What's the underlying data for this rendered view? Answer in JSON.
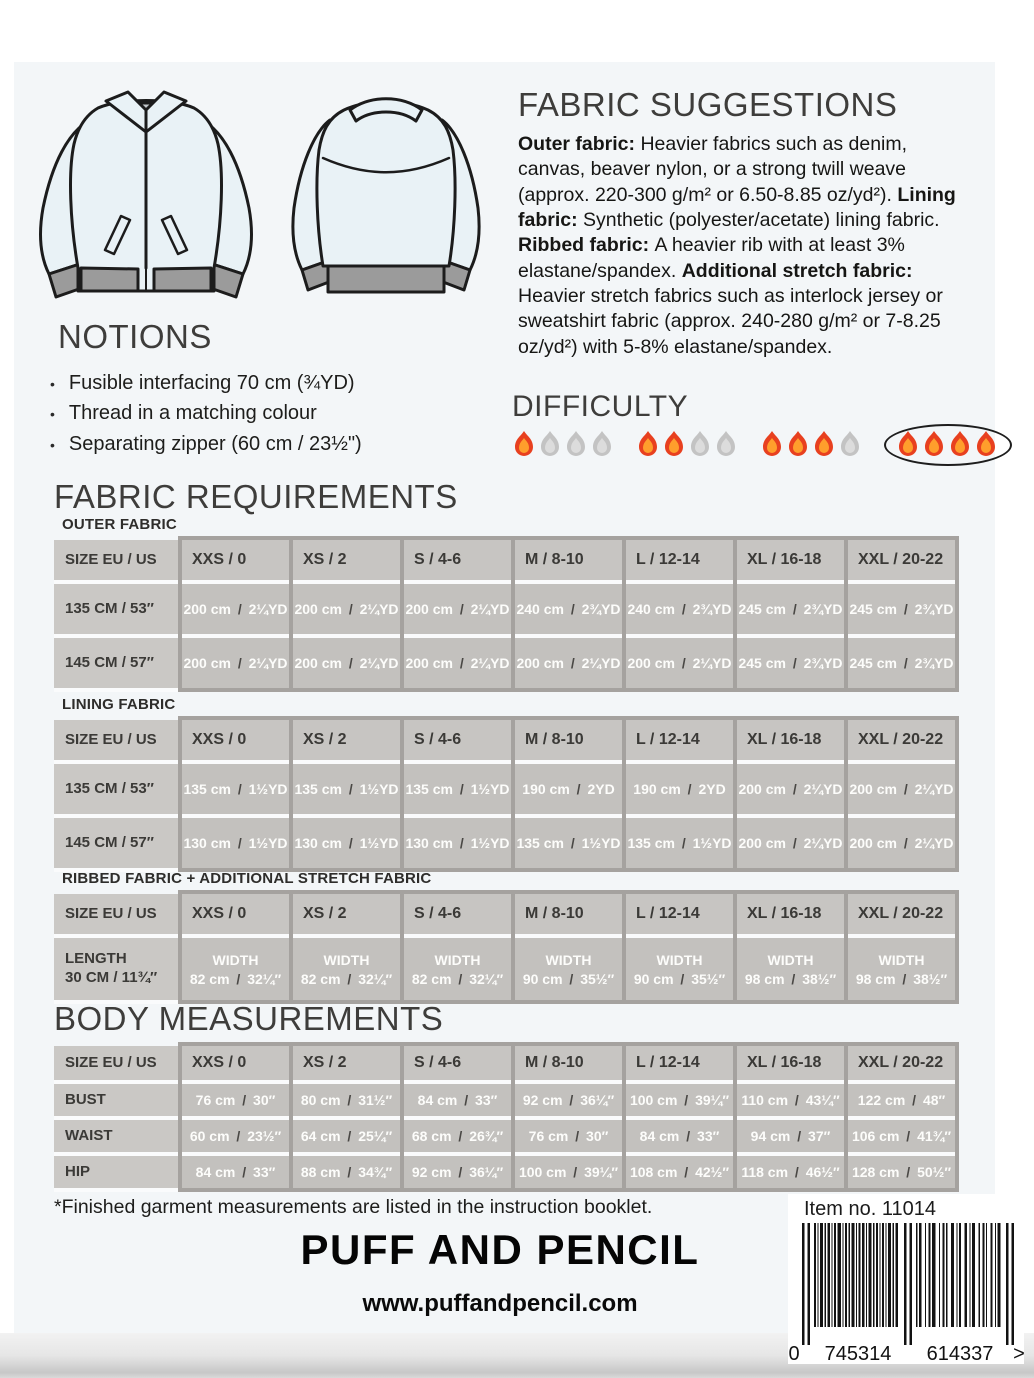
{
  "fabric_suggestions": {
    "title": "FABRIC SUGGESTIONS",
    "segments": [
      {
        "bold": true,
        "text": "Outer fabric: "
      },
      {
        "bold": false,
        "text": "Heavier fabrics such as denim, canvas, beaver nylon, or a strong twill weave (approx. 220-300 g/m² or 6.50-8.85 oz/yd²). "
      },
      {
        "bold": true,
        "text": "Lining fabric: "
      },
      {
        "bold": false,
        "text": "Synthetic (polyester/acetate) lining fabric. "
      },
      {
        "bold": true,
        "text": "Ribbed fabric: "
      },
      {
        "bold": false,
        "text": "A heavier rib with at least 3% elastane/spandex. "
      },
      {
        "bold": true,
        "text": "Additional stretch fabric: "
      },
      {
        "bold": false,
        "text": "Heavier stretch fabrics such as interlock jersey or sweatshirt fabric (approx. 240-280 g/m² or 7-8.25 oz/yd²) with 5-8% elastane/spandex."
      }
    ]
  },
  "notions": {
    "title": "NOTIONS",
    "items": [
      "Fusible interfacing 70 cm (¾YD)",
      "Thread in a matching colour",
      "Separating zipper (60 cm / 23½\")"
    ]
  },
  "difficulty": {
    "title": "DIFFICULTY",
    "levels": [
      {
        "filled": 1,
        "total": 4,
        "selected": false
      },
      {
        "filled": 2,
        "total": 4,
        "selected": false
      },
      {
        "filled": 3,
        "total": 4,
        "selected": false
      },
      {
        "filled": 4,
        "total": 4,
        "selected": true
      }
    ],
    "flame_filled_colors": [
      "#e8401f",
      "#ff9e2c"
    ],
    "flame_empty_colors": [
      "#c3c3c3",
      "#dcdcdc"
    ]
  },
  "size_columns": {
    "header": "SIZE EU / US",
    "sizes": [
      "XXS / 0",
      "XS / 2",
      "S / 4-6",
      "M / 8-10",
      "L / 12-14",
      "XL / 16-18",
      "XXL / 20-22"
    ],
    "separator": " / "
  },
  "fabric_requirements": {
    "title": "FABRIC REQUIREMENTS",
    "tables": [
      {
        "name": "OUTER FABRIC",
        "rows": [
          {
            "label_lines": [
              "135 CM / 53″"
            ],
            "cells": [
              [
                "200 cm",
                "2¼YD"
              ],
              [
                "200 cm",
                "2¼YD"
              ],
              [
                "200 cm",
                "2¼YD"
              ],
              [
                "240 cm",
                "2¾YD"
              ],
              [
                "240 cm",
                "2¾YD"
              ],
              [
                "245 cm",
                "2¾YD"
              ],
              [
                "245 cm",
                "2¾YD"
              ]
            ]
          },
          {
            "label_lines": [
              "145 CM / 57″"
            ],
            "cells": [
              [
                "200 cm",
                "2¼YD"
              ],
              [
                "200 cm",
                "2¼YD"
              ],
              [
                "200 cm",
                "2¼YD"
              ],
              [
                "200 cm",
                "2¼YD"
              ],
              [
                "200 cm",
                "2¼YD"
              ],
              [
                "245 cm",
                "2¾YD"
              ],
              [
                "245 cm",
                "2¾YD"
              ]
            ]
          }
        ]
      },
      {
        "name": "LINING FABRIC",
        "rows": [
          {
            "label_lines": [
              "135 CM / 53″"
            ],
            "cells": [
              [
                "135 cm",
                "1½YD"
              ],
              [
                "135 cm",
                "1½YD"
              ],
              [
                "135 cm",
                "1½YD"
              ],
              [
                "190 cm",
                "2YD"
              ],
              [
                "190 cm",
                "2YD"
              ],
              [
                "200 cm",
                "2¼YD"
              ],
              [
                "200 cm",
                "2¼YD"
              ]
            ]
          },
          {
            "label_lines": [
              "145 CM / 57″"
            ],
            "cells": [
              [
                "130 cm",
                "1½YD"
              ],
              [
                "130 cm",
                "1½YD"
              ],
              [
                "130 cm",
                "1½YD"
              ],
              [
                "135 cm",
                "1½YD"
              ],
              [
                "135 cm",
                "1½YD"
              ],
              [
                "200 cm",
                "2¼YD"
              ],
              [
                "200 cm",
                "2¼YD"
              ]
            ]
          }
        ]
      },
      {
        "name": "RIBBED FABRIC + ADDITIONAL STRETCH FABRIC",
        "rows": [
          {
            "label_lines": [
              "LENGTH",
              "30 CM / 11¾″"
            ],
            "width_word": "WIDTH",
            "cells": [
              [
                "82 cm",
                "32¼″"
              ],
              [
                "82 cm",
                "32¼″"
              ],
              [
                "82 cm",
                "32¼″"
              ],
              [
                "90 cm",
                "35½″"
              ],
              [
                "90 cm",
                "35½″"
              ],
              [
                "98 cm",
                "38½″"
              ],
              [
                "98 cm",
                "38½″"
              ]
            ]
          }
        ]
      }
    ]
  },
  "body_measurements": {
    "title": "BODY MEASUREMENTS",
    "rows": [
      {
        "label_lines": [
          "BUST"
        ],
        "cells": [
          [
            "76 cm",
            "30″"
          ],
          [
            "80 cm",
            "31½″"
          ],
          [
            "84 cm",
            "33″"
          ],
          [
            "92 cm",
            "36¼″"
          ],
          [
            "100 cm",
            "39¼″"
          ],
          [
            "110 cm",
            "43¼″"
          ],
          [
            "122 cm",
            "48″"
          ]
        ]
      },
      {
        "label_lines": [
          "WAIST"
        ],
        "cells": [
          [
            "60 cm",
            "23½″"
          ],
          [
            "64 cm",
            "25¼″"
          ],
          [
            "68 cm",
            "26¾″"
          ],
          [
            "76 cm",
            "30″"
          ],
          [
            "84 cm",
            "33″"
          ],
          [
            "94 cm",
            "37″"
          ],
          [
            "106 cm",
            "41¾″"
          ]
        ]
      },
      {
        "label_lines": [
          "HIP"
        ],
        "cells": [
          [
            "84 cm",
            "33″"
          ],
          [
            "88 cm",
            "34¾″"
          ],
          [
            "92 cm",
            "36¼″"
          ],
          [
            "100 cm",
            "39¼″"
          ],
          [
            "108 cm",
            "42½″"
          ],
          [
            "118 cm",
            "46½″"
          ],
          [
            "128 cm",
            "50½″"
          ]
        ]
      }
    ]
  },
  "footnote": "*Finished garment measurements are listed in the instruction booklet.",
  "brand": {
    "logo": "PUFF AND PENCIL",
    "website": "www.puffandpencil.com"
  },
  "barcode": {
    "item_label": "Item no. 11014",
    "left_digit": "0",
    "group1": "745314",
    "group2": "614337",
    "right_symbol": ">"
  }
}
